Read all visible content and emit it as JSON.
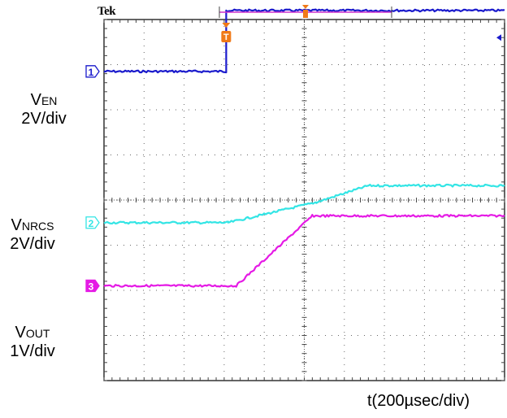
{
  "brand": "Tek",
  "time_label": "t(200µsec/div)",
  "channels": [
    {
      "id": "1",
      "name_main": "V",
      "name_sub": "EN",
      "scale": "2V/div",
      "color": "#1a1acc"
    },
    {
      "id": "2",
      "name_main": "V",
      "name_sub": "NRCS",
      "scale": "2V/div",
      "color": "#33e5e5"
    },
    {
      "id": "3",
      "name_main": "V",
      "name_sub": "OUT",
      "scale": "1V/div",
      "color": "#e51ae5"
    }
  ],
  "trigger": {
    "marker": "T",
    "color": "#f07a18"
  },
  "chart_data": {
    "type": "line",
    "xlabel": "t(200µsec/div)",
    "grid": true,
    "x_divisions": 10,
    "y_divisions": 8,
    "xlim": [
      0,
      10
    ],
    "ylim": [
      0,
      8
    ],
    "series": [
      {
        "name": "VEN",
        "x": [
          0,
          3.05,
          3.05,
          10
        ],
        "y": [
          6.85,
          6.85,
          8.2,
          8.2
        ]
      },
      {
        "name": "VNRCS",
        "x": [
          0,
          3.1,
          5.3,
          6.6,
          10
        ],
        "y": [
          3.5,
          3.5,
          3.95,
          4.32,
          4.32
        ]
      },
      {
        "name": "VOUT",
        "x": [
          0,
          3.3,
          5.2,
          10
        ],
        "y": [
          2.1,
          2.1,
          3.65,
          3.65
        ]
      }
    ]
  }
}
